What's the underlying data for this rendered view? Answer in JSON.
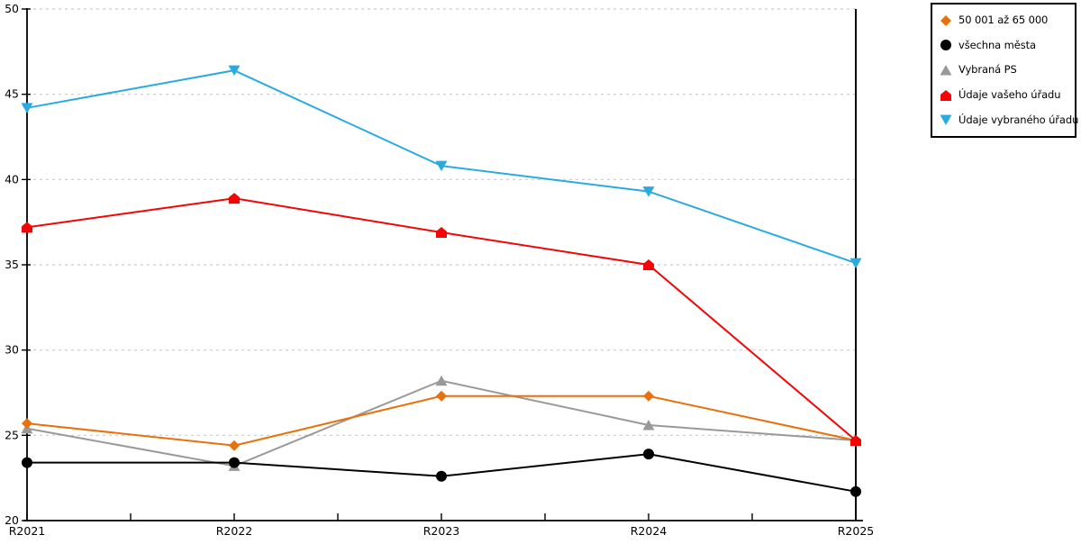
{
  "chart_data": {
    "type": "line",
    "title": "",
    "xlabel": "",
    "ylabel": "",
    "categories": [
      "R2021",
      "R2022",
      "R2023",
      "R2024",
      "R2025"
    ],
    "ylim": [
      20,
      50
    ],
    "ytick_step": 5,
    "y_tick_labels": [
      "20",
      "25",
      "30",
      "35",
      "40",
      "45",
      "50"
    ],
    "grid": "horizontal-dashed",
    "legend_position": "outside-top-right",
    "series": [
      {
        "name": "50 001 až 65 000",
        "color": "#E8710C",
        "marker": "diamond",
        "values": [
          25.7,
          24.4,
          27.3,
          27.3,
          24.7
        ]
      },
      {
        "name": "všechna města",
        "color": "#000000",
        "marker": "circle",
        "values": [
          23.4,
          23.4,
          22.6,
          23.9,
          21.7
        ]
      },
      {
        "name": "Vybraná PS",
        "color": "#999999",
        "marker": "triangle-up",
        "values": [
          25.4,
          23.2,
          28.2,
          25.6,
          24.7
        ]
      },
      {
        "name": "Údaje vašeho úřadu",
        "color": "#F40404",
        "marker": "pentagon-up",
        "values": [
          37.2,
          38.9,
          36.9,
          35.0,
          24.7
        ]
      },
      {
        "name": "Údaje vybraného úřadu",
        "color": "#29ABE2",
        "marker": "triangle-down",
        "values": [
          44.2,
          46.4,
          40.8,
          39.3,
          35.1
        ]
      }
    ]
  },
  "colors": {
    "grid": "#C9C9C9",
    "axis": "#000000",
    "background": "#FFFFFF",
    "legend_border": "#000000",
    "tick_label": "#000000"
  }
}
